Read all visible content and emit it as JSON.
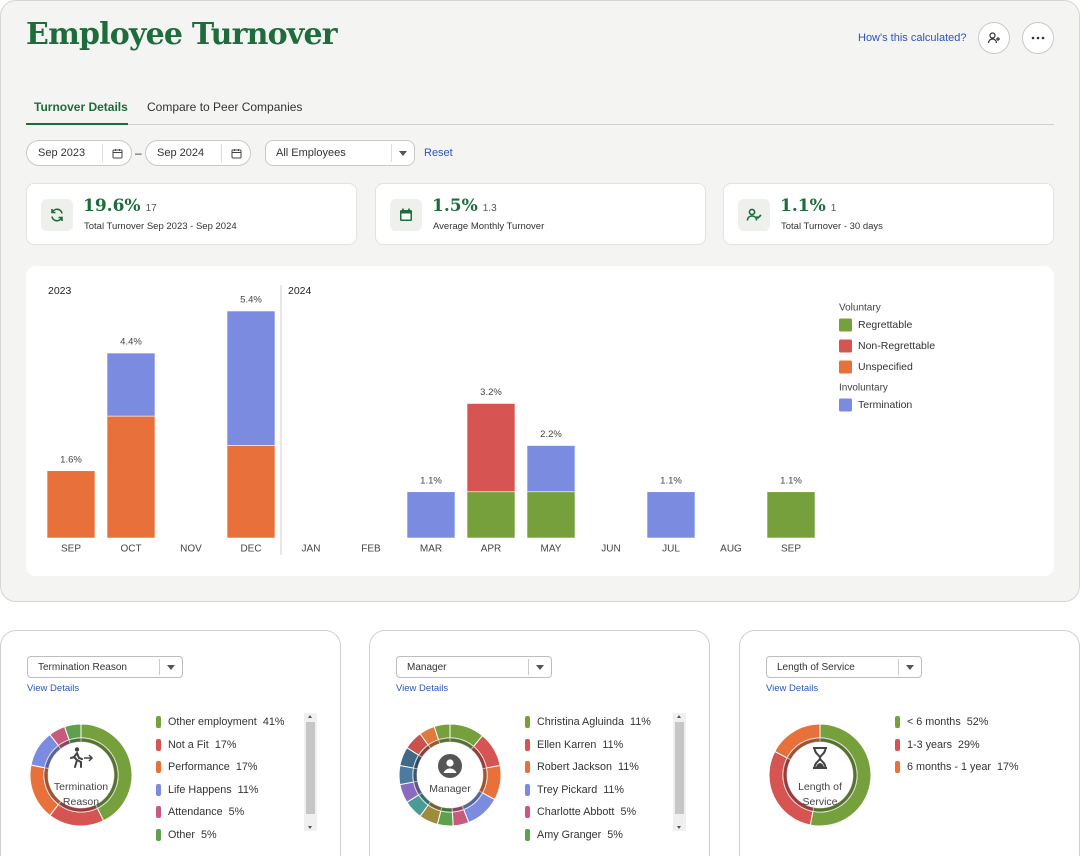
{
  "header": {
    "title": "Employee Turnover",
    "help_link": "How's this calculated?"
  },
  "tabs": [
    "Turnover Details",
    "Compare to Peer Companies"
  ],
  "filters": {
    "start": "Sep 2023",
    "separator": "–",
    "end": "Sep 2024",
    "population": "All Employees",
    "reset": "Reset"
  },
  "kpis": [
    {
      "value": "19.6%",
      "count": "17",
      "label": "Total Turnover Sep 2023 - Sep 2024"
    },
    {
      "value": "1.5%",
      "count": "1.3",
      "label": "Average Monthly Turnover"
    },
    {
      "value": "1.1%",
      "count": "1",
      "label": "Total Turnover - 30 days"
    }
  ],
  "chart_data": {
    "type": "stacked_bar",
    "category_groups": [
      {
        "year": "2023",
        "months": [
          "SEP",
          "OCT",
          "NOV",
          "DEC"
        ]
      },
      {
        "year": "2024",
        "months": [
          "JAN",
          "FEB",
          "MAR",
          "APR",
          "MAY",
          "JUN",
          "JUL",
          "AUG",
          "SEP"
        ]
      }
    ],
    "series": [
      {
        "name": "Regrettable",
        "group": "Voluntary",
        "color": "#76a03c",
        "values": [
          null,
          null,
          null,
          null,
          null,
          null,
          null,
          1.1,
          1.1,
          null,
          null,
          null,
          1.1
        ]
      },
      {
        "name": "Non-Regrettable",
        "color": "#d65451",
        "values": [
          null,
          null,
          null,
          null,
          null,
          null,
          null,
          2.1,
          null,
          null,
          null,
          null,
          null
        ]
      },
      {
        "name": "Unspecified",
        "color": "#e8703a",
        "values": [
          1.6,
          2.9,
          null,
          2.2,
          null,
          null,
          null,
          null,
          null,
          null,
          null,
          null,
          null
        ]
      },
      {
        "name": "Termination",
        "group": "Involuntary",
        "color": "#7b8be0",
        "values": [
          null,
          1.5,
          null,
          3.2,
          null,
          null,
          1.1,
          null,
          1.1,
          null,
          1.1,
          null,
          null
        ]
      }
    ],
    "total_labels": [
      "1.6%",
      "4.4%",
      null,
      "5.4%",
      null,
      null,
      "1.1%",
      "3.2%",
      "2.2%",
      null,
      "1.1%",
      null,
      "1.1%"
    ]
  },
  "breakdowns": [
    {
      "selector": "Termination Reason",
      "link": "View Details",
      "center_label": "Termination Reason",
      "items": [
        {
          "name": "Other employment",
          "color": "#76a03c",
          "value": 41,
          "value_label": "41%"
        },
        {
          "name": "Not a Fit",
          "color": "#d65451",
          "value": 17,
          "value_label": "17%"
        },
        {
          "name": "Performance",
          "color": "#e8703a",
          "value": 17,
          "value_label": "17%"
        },
        {
          "name": "Life Happens",
          "color": "#7b8be0",
          "value": 11,
          "value_label": "11%"
        },
        {
          "name": "Attendance",
          "color": "#c85a7e",
          "value": 5,
          "value_label": "5%"
        },
        {
          "name": "Other",
          "color": "#5fa04e",
          "value": 5,
          "value_label": "5%"
        }
      ]
    },
    {
      "selector": "Manager",
      "link": "View Details",
      "center_label": "Manager",
      "items": [
        {
          "name": "Christina Agluinda",
          "color": "#76a03c",
          "value": 11,
          "value_label": "11%"
        },
        {
          "name": "Ellen Karren",
          "color": "#d65451",
          "value": 11,
          "value_label": "11%"
        },
        {
          "name": "Robert Jackson",
          "color": "#e8703a",
          "value": 11,
          "value_label": "11%"
        },
        {
          "name": "Trey Pickard",
          "color": "#7b8be0",
          "value": 11,
          "value_label": "11%"
        },
        {
          "name": "Charlotte Abbott",
          "color": "#c85a7e",
          "value": 5,
          "value_label": "5%"
        },
        {
          "name": "Amy Granger",
          "color": "#5fa04e",
          "value": 5,
          "value_label": "5%"
        },
        {
          "name": null,
          "color": "#a08a3c",
          "value": 6
        },
        {
          "name": null,
          "color": "#4a9a95",
          "value": 6
        },
        {
          "name": null,
          "color": "#8a6bbf",
          "value": 6
        },
        {
          "name": null,
          "color": "#4d7a9e",
          "value": 6
        },
        {
          "name": null,
          "color": "#3f6a86",
          "value": 6
        },
        {
          "name": null,
          "color": "#c9524c",
          "value": 6
        },
        {
          "name": null,
          "color": "#e07a3a",
          "value": 5
        },
        {
          "name": null,
          "color": "#76a03c",
          "value": 5
        }
      ]
    },
    {
      "selector": "Length of Service",
      "link": "View Details",
      "center_label": "Length of Service",
      "items": [
        {
          "name": "< 6 months",
          "color": "#76a03c",
          "value": 52,
          "value_label": "52%"
        },
        {
          "name": "1-3 years",
          "color": "#d65451",
          "value": 29,
          "value_label": "29%"
        },
        {
          "name": "6 months - 1 year",
          "color": "#e8703a",
          "value": 17,
          "value_label": "17%"
        }
      ]
    }
  ]
}
